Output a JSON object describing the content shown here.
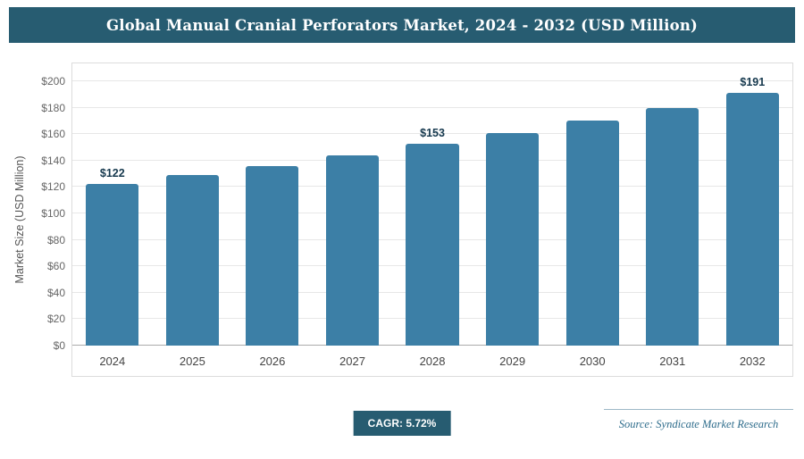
{
  "header": {
    "title": "Global Manual Cranial Perforators Market, 2024 - 2032 (USD Million)"
  },
  "chart_data": {
    "type": "bar",
    "title": "Global Manual Cranial Perforators Market, 2024 - 2032 (USD Million)",
    "categories": [
      "2024",
      "2025",
      "2026",
      "2027",
      "2028",
      "2029",
      "2030",
      "2031",
      "2032"
    ],
    "values": [
      122,
      129,
      136,
      144,
      153,
      161,
      170,
      180,
      191
    ],
    "bar_labels": [
      "$122",
      "",
      "",
      "",
      "$153",
      "",
      "",
      "",
      "$191"
    ],
    "ylabel": "Market Size (USD Million)",
    "xlabel": "",
    "ylim": [
      0,
      200
    ],
    "ytick_step": 20,
    "yticks": [
      "$0",
      "$20",
      "$40",
      "$60",
      "$80",
      "$100",
      "$120",
      "$140",
      "$160",
      "$180",
      "$200"
    ],
    "grid": "horizontal",
    "legend": "none",
    "bar_color": "#3c7fa6",
    "header_color": "#275c71"
  },
  "footer": {
    "cagr_label": "CAGR: 5.72%",
    "source": "Source: Syndicate Market Research"
  }
}
